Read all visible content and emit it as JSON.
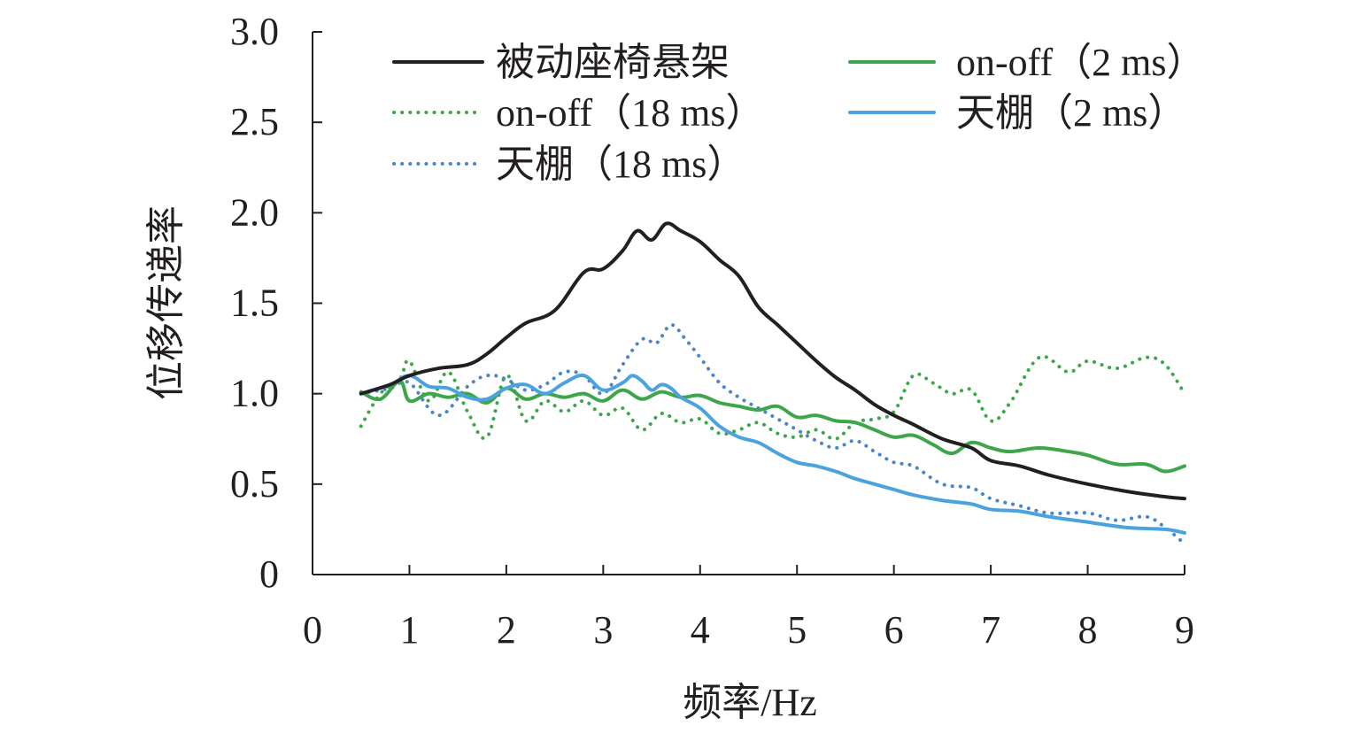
{
  "chart_data": {
    "type": "line",
    "title": "",
    "xlabel": "频率/Hz",
    "ylabel": "位移传递率",
    "xlim": [
      0,
      9
    ],
    "ylim": [
      0,
      3.0
    ],
    "x_ticks": [
      0,
      1,
      2,
      3,
      4,
      5,
      6,
      7,
      8,
      9
    ],
    "x_tick_labels": [
      "0",
      "1",
      "2",
      "3",
      "4",
      "5",
      "6",
      "7",
      "8",
      "9"
    ],
    "y_ticks": [
      0,
      0.5,
      1.0,
      1.5,
      2.0,
      2.5,
      3.0
    ],
    "y_tick_labels": [
      "0",
      "0.5",
      "1.0",
      "1.5",
      "2.0",
      "2.5",
      "3.0"
    ],
    "grid": false,
    "legend_position": "top",
    "series": [
      {
        "name": "被动座椅悬架",
        "color": "#231f20",
        "style": "solid",
        "x": [
          0.5,
          0.8,
          1.0,
          1.3,
          1.6,
          1.8,
          2.0,
          2.2,
          2.5,
          2.8,
          3.0,
          3.2,
          3.35,
          3.5,
          3.65,
          3.8,
          4.0,
          4.2,
          4.4,
          4.6,
          4.8,
          5.0,
          5.2,
          5.4,
          5.6,
          5.8,
          6.0,
          6.2,
          6.5,
          6.8,
          7.0,
          7.3,
          7.6,
          8.0,
          8.4,
          8.8,
          9.0
        ],
        "values": [
          1.0,
          1.05,
          1.1,
          1.14,
          1.16,
          1.22,
          1.31,
          1.39,
          1.46,
          1.67,
          1.69,
          1.79,
          1.9,
          1.85,
          1.94,
          1.9,
          1.84,
          1.74,
          1.65,
          1.48,
          1.38,
          1.28,
          1.18,
          1.09,
          1.02,
          0.94,
          0.88,
          0.83,
          0.75,
          0.7,
          0.63,
          0.6,
          0.55,
          0.5,
          0.46,
          0.43,
          0.42
        ]
      },
      {
        "name": "on-off（2 ms）",
        "color": "#3ea64a",
        "style": "solid",
        "x": [
          0.5,
          0.7,
          0.9,
          1.0,
          1.2,
          1.4,
          1.6,
          1.8,
          2.0,
          2.2,
          2.4,
          2.6,
          2.8,
          3.0,
          3.2,
          3.4,
          3.6,
          3.8,
          4.0,
          4.2,
          4.4,
          4.6,
          4.8,
          5.0,
          5.2,
          5.4,
          5.6,
          5.8,
          6.0,
          6.2,
          6.4,
          6.6,
          6.8,
          7.0,
          7.2,
          7.5,
          7.8,
          8.0,
          8.3,
          8.6,
          8.8,
          9.0
        ],
        "values": [
          1.01,
          0.97,
          1.07,
          0.96,
          1.0,
          0.98,
          1.0,
          0.95,
          1.03,
          0.97,
          1.0,
          0.98,
          1.0,
          0.96,
          1.02,
          0.97,
          1.01,
          0.98,
          0.99,
          0.95,
          0.93,
          0.91,
          0.93,
          0.87,
          0.88,
          0.85,
          0.84,
          0.8,
          0.76,
          0.77,
          0.72,
          0.67,
          0.73,
          0.7,
          0.68,
          0.7,
          0.68,
          0.66,
          0.61,
          0.61,
          0.57,
          0.6
        ]
      },
      {
        "name": "on-off（18 ms）",
        "color": "#3ea64a",
        "style": "dotted",
        "x": [
          0.5,
          0.7,
          0.9,
          1.0,
          1.2,
          1.4,
          1.6,
          1.8,
          2.0,
          2.2,
          2.4,
          2.6,
          2.8,
          3.0,
          3.2,
          3.4,
          3.6,
          3.8,
          4.0,
          4.2,
          4.4,
          4.6,
          4.8,
          5.0,
          5.2,
          5.4,
          5.6,
          5.8,
          6.0,
          6.2,
          6.4,
          6.6,
          6.8,
          7.0,
          7.2,
          7.5,
          7.8,
          8.0,
          8.3,
          8.6,
          8.8,
          9.0
        ],
        "values": [
          0.82,
          1.0,
          1.08,
          1.18,
          0.96,
          1.12,
          0.9,
          0.76,
          1.1,
          0.85,
          0.96,
          0.9,
          0.96,
          0.88,
          0.92,
          0.8,
          0.89,
          0.84,
          0.86,
          0.78,
          0.8,
          0.84,
          0.78,
          0.76,
          0.8,
          0.75,
          0.84,
          0.86,
          0.9,
          1.1,
          1.06,
          1.0,
          1.02,
          0.85,
          0.95,
          1.2,
          1.12,
          1.18,
          1.14,
          1.2,
          1.16,
          1.0
        ]
      },
      {
        "name": "天棚（2 ms）",
        "color": "#4aa3df",
        "style": "solid",
        "x": [
          0.5,
          0.8,
          1.0,
          1.2,
          1.4,
          1.6,
          1.8,
          2.0,
          2.2,
          2.4,
          2.6,
          2.8,
          3.0,
          3.2,
          3.3,
          3.4,
          3.5,
          3.6,
          3.7,
          3.8,
          4.0,
          4.2,
          4.4,
          4.6,
          4.8,
          5.0,
          5.2,
          5.4,
          5.6,
          5.8,
          6.0,
          6.2,
          6.5,
          6.8,
          7.0,
          7.3,
          7.6,
          8.0,
          8.4,
          8.8,
          9.0
        ],
        "values": [
          1.0,
          1.05,
          1.1,
          1.04,
          1.03,
          0.98,
          0.97,
          1.03,
          1.05,
          1.0,
          1.06,
          1.1,
          1.02,
          1.06,
          1.1,
          1.07,
          1.02,
          1.05,
          1.03,
          0.98,
          0.92,
          0.82,
          0.76,
          0.73,
          0.67,
          0.62,
          0.6,
          0.57,
          0.53,
          0.5,
          0.47,
          0.44,
          0.41,
          0.39,
          0.36,
          0.35,
          0.32,
          0.29,
          0.26,
          0.25,
          0.23
        ]
      },
      {
        "name": "天棚（18 ms）",
        "color": "#4a85c7",
        "style": "dotted",
        "x": [
          0.5,
          0.8,
          1.0,
          1.3,
          1.6,
          1.8,
          2.0,
          2.2,
          2.4,
          2.6,
          2.8,
          3.0,
          3.2,
          3.4,
          3.55,
          3.7,
          3.85,
          4.0,
          4.2,
          4.4,
          4.6,
          4.8,
          5.0,
          5.2,
          5.4,
          5.6,
          5.8,
          6.0,
          6.2,
          6.5,
          6.8,
          7.0,
          7.3,
          7.6,
          8.0,
          8.3,
          8.6,
          8.8,
          9.0
        ],
        "values": [
          1.0,
          1.03,
          1.06,
          0.88,
          1.04,
          1.1,
          1.08,
          1.02,
          1.05,
          1.12,
          1.1,
          1.0,
          1.16,
          1.3,
          1.28,
          1.38,
          1.3,
          1.2,
          1.06,
          0.98,
          0.92,
          0.86,
          0.8,
          0.74,
          0.7,
          0.74,
          0.68,
          0.62,
          0.6,
          0.5,
          0.48,
          0.42,
          0.38,
          0.34,
          0.34,
          0.3,
          0.32,
          0.26,
          0.17
        ]
      }
    ]
  }
}
